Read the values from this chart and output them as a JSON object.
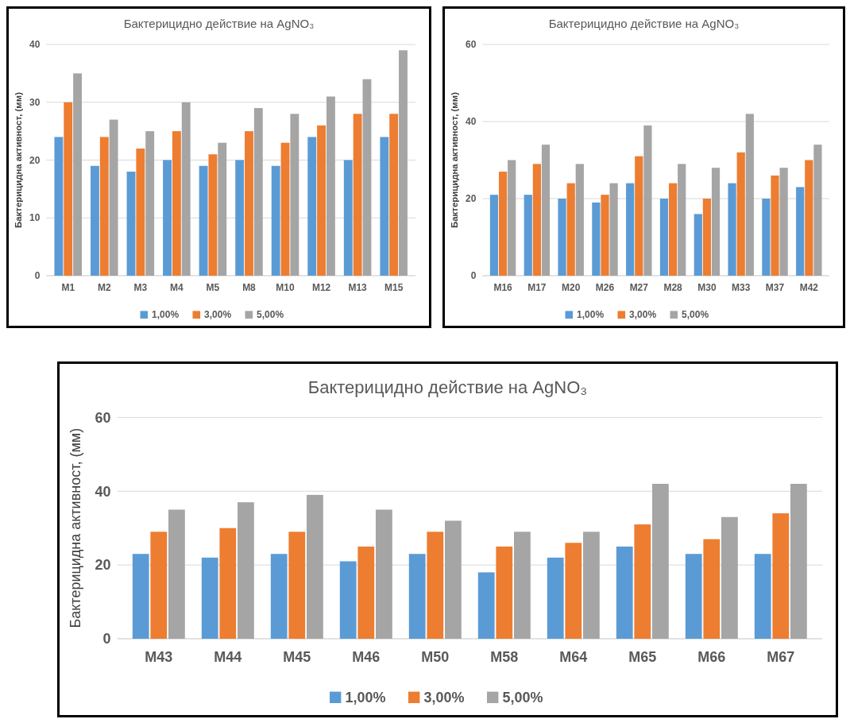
{
  "chart_data": [
    {
      "type": "bar",
      "title": "Бактерицидно действие на AgNO₃",
      "ylabel": "Бактерицидна активност, (мм)",
      "categories": [
        "M1",
        "M2",
        "M3",
        "M4",
        "M5",
        "M8",
        "M10",
        "M12",
        "M13",
        "M15"
      ],
      "series": [
        {
          "name": "1,00%",
          "color": "#5b9bd5",
          "values": [
            24,
            19,
            18,
            20,
            19,
            20,
            19,
            24,
            20,
            24
          ]
        },
        {
          "name": "3,00%",
          "color": "#ed7d31",
          "values": [
            30,
            24,
            22,
            25,
            21,
            25,
            23,
            26,
            28,
            28
          ]
        },
        {
          "name": "5,00%",
          "color": "#a5a5a5",
          "values": [
            35,
            27,
            25,
            30,
            23,
            29,
            28,
            31,
            34,
            39
          ]
        }
      ],
      "ylim": [
        0,
        40
      ],
      "yticks": [
        0,
        10,
        20,
        30,
        40
      ],
      "grid": "y",
      "legend": "bottom"
    },
    {
      "type": "bar",
      "title": "Бактерицидно действие на AgNO₃",
      "ylabel": "Бактерицидна активност,  (мм)",
      "categories": [
        "M16",
        "M17",
        "M20",
        "M26",
        "M27",
        "M28",
        "M30",
        "M33",
        "M37",
        "M42"
      ],
      "series": [
        {
          "name": "1,00%",
          "color": "#5b9bd5",
          "values": [
            21,
            21,
            20,
            19,
            24,
            20,
            16,
            24,
            20,
            23
          ]
        },
        {
          "name": "3,00%",
          "color": "#ed7d31",
          "values": [
            27,
            29,
            24,
            21,
            31,
            24,
            20,
            32,
            26,
            30
          ]
        },
        {
          "name": "5,00%",
          "color": "#a5a5a5",
          "values": [
            30,
            34,
            29,
            24,
            39,
            29,
            28,
            42,
            28,
            34
          ]
        }
      ],
      "ylim": [
        0,
        60
      ],
      "yticks": [
        0,
        20,
        40,
        60
      ],
      "grid": "y",
      "legend": "bottom"
    },
    {
      "type": "bar",
      "title": "Бактерицидно действие на AgNO₃",
      "ylabel": "Бактерицидна активност, (мм)",
      "categories": [
        "M43",
        "M44",
        "M45",
        "M46",
        "M50",
        "M58",
        "M64",
        "M65",
        "M66",
        "M67"
      ],
      "series": [
        {
          "name": "1,00%",
          "color": "#5b9bd5",
          "values": [
            23,
            22,
            23,
            21,
            23,
            18,
            22,
            25,
            23,
            23
          ]
        },
        {
          "name": "3,00%",
          "color": "#ed7d31",
          "values": [
            29,
            30,
            29,
            25,
            29,
            25,
            26,
            31,
            27,
            34
          ]
        },
        {
          "name": "5,00%",
          "color": "#a5a5a5",
          "values": [
            35,
            37,
            39,
            35,
            32,
            29,
            29,
            42,
            33,
            42
          ]
        }
      ],
      "ylim": [
        0,
        60
      ],
      "yticks": [
        0,
        20,
        40,
        60
      ],
      "grid": "y",
      "legend": "bottom"
    }
  ]
}
